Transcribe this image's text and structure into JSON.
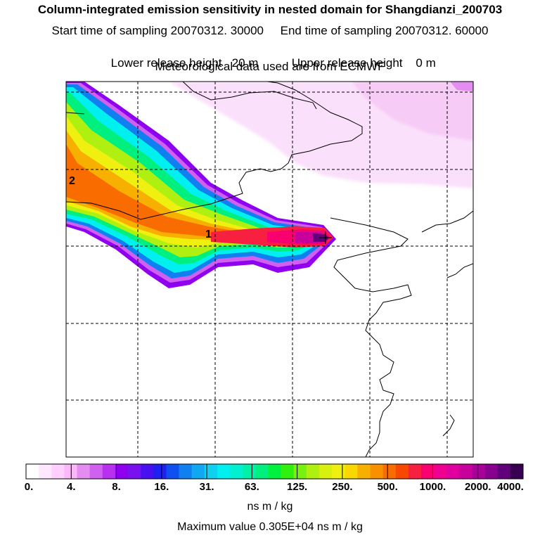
{
  "header": {
    "title": "Column-integrated emission sensitivity in nested domain for Shangdianzi_200703",
    "line2_left": "Start time of sampling 20070312. 30000",
    "line2_right": "End time of sampling 20070312. 60000",
    "line3_left": "Lower release height   20 m",
    "line3_right": "Upper release height    0 m",
    "line4": "Meteorological data used are from ECMWF"
  },
  "map": {
    "labels": {
      "point1": "1",
      "point2": "2"
    }
  },
  "colorbar": {
    "tick_labels": [
      "0.",
      "4.",
      "8.",
      "16.",
      "31.",
      "63.",
      "125.",
      "250.",
      "500.",
      "1000.",
      "2000.",
      "4000."
    ],
    "segments": [
      "#ffffff",
      "#ffe8ff",
      "#ffd0ff",
      "#fbb8f8",
      "#e48cf0",
      "#d060f0",
      "#b830f0",
      "#9000f0",
      "#7810f0",
      "#4810f0",
      "#2020f0",
      "#1050f0",
      "#1080f0",
      "#10a8f0",
      "#10d0f0",
      "#00f0f0",
      "#00f0d0",
      "#00f0a8",
      "#00f080",
      "#00f040",
      "#30f010",
      "#78f010",
      "#b0f010",
      "#d8f010",
      "#f0f010",
      "#f8d800",
      "#f8b000",
      "#f89000",
      "#f86c00",
      "#f84800",
      "#f82040",
      "#f80070",
      "#f00090",
      "#e000a0",
      "#c8009c",
      "#a80098",
      "#880090",
      "#60007a",
      "#380050"
    ]
  },
  "units": "ns m / kg",
  "max_value": "Maximum value  0.305E+04 ns m / kg"
}
